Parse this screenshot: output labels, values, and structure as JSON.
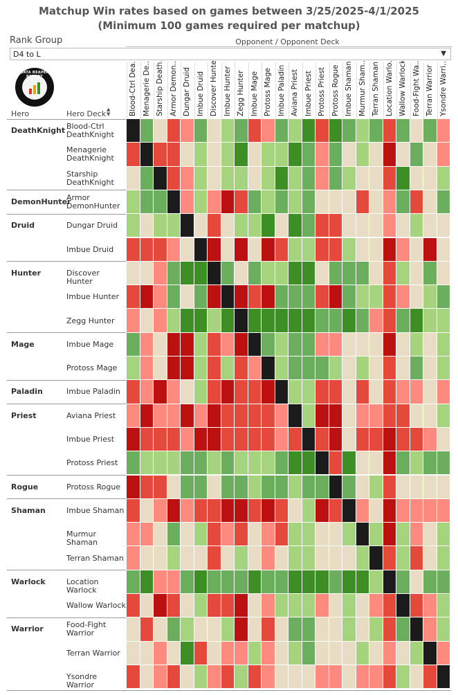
{
  "title": {
    "line1": "Matchup Win rates based on games between 3/25/2025-4/1/2025",
    "line2": "(Minimum 100 games required per matchup)"
  },
  "filters": {
    "rank_group_label": "Rank Group",
    "rank_group_value": "D4 to L",
    "opponent_header": "Opponent / Opponent Deck"
  },
  "logo": {
    "text": "DATA REAPER REPORT"
  },
  "columns": {
    "hero": "Hero",
    "hero_deck": "Hero Deck"
  },
  "colors": {
    "5": "#1b1b1b",
    "0": "#e8dcc4",
    "1": "#a6d47e",
    "2": "#6aae5e",
    "3": "#3d8e25",
    "-1": "#fc8a7e",
    "-2": "#e5493b",
    "-3": "#bb1110"
  },
  "chart_data": {
    "type": "heatmap",
    "title": "Matchup Win rates based on games between 3/25/2025-4/1/2025",
    "subtitle": "(Minimum 100 games required per matchup)",
    "x_label": "Opponent / Opponent Deck",
    "y_labels": [
      "Hero",
      "Hero Deck"
    ],
    "value_scale": "ordinal: -3 strongly unfavored .. 0 even .. 3 strongly favored; 5 = mirror (black)",
    "columns": [
      "Blood-Ctrl Dea...",
      "Menagerie De...",
      "Starship Death...",
      "Armor Demon...",
      "Dungar Druid",
      "Imbue Druid",
      "Discover Hunter",
      "Imbue Hunter",
      "Zegg Hunter",
      "Imbue Mage",
      "Protoss Mage",
      "Imbue Paladin",
      "Aviana Priest",
      "Imbue Priest",
      "Protoss Priest",
      "Protoss Rogue",
      "Imbue Shaman",
      "Murmur Sham...",
      "Terran Shaman",
      "Location Warlo...",
      "Wallow Warlock",
      "Food-Fight Wa...",
      "Terran Warrior",
      "Ysondre Warri..."
    ],
    "rows": [
      {
        "hero": "DeathKnight",
        "deck": "Blood-Ctrl DeathKnight",
        "values": [
          5,
          2,
          0,
          -2,
          -1,
          2,
          0,
          1,
          2,
          -2,
          -1,
          2,
          1,
          3,
          -2,
          3,
          2,
          1,
          2,
          -2,
          2,
          0,
          2,
          -1
        ]
      },
      {
        "hero": "DeathKnight",
        "deck": "Menagerie DeathKnight",
        "values": [
          -2,
          5,
          -2,
          -2,
          0,
          1,
          0,
          1,
          3,
          0,
          1,
          1,
          3,
          2,
          -1,
          2,
          0,
          1,
          0,
          -3,
          0,
          2,
          0,
          -1
        ]
      },
      {
        "hero": "DeathKnight",
        "deck": "Starship DeathKnight",
        "values": [
          0,
          2,
          5,
          -2,
          -1,
          1,
          0,
          1,
          1,
          0,
          1,
          3,
          1,
          2,
          -1,
          2,
          1,
          0,
          0,
          -2,
          3,
          0,
          0,
          1
        ]
      },
      {
        "hero": "DemonHunter",
        "deck": "Armor DemonHunter",
        "values": [
          1,
          2,
          2,
          5,
          -1,
          1,
          -1,
          -3,
          -2,
          2,
          1,
          2,
          1,
          2,
          0,
          0,
          0,
          -2,
          0,
          -1,
          2,
          -2,
          0,
          2
        ]
      },
      {
        "hero": "Druid",
        "deck": "Dungar Druid",
        "values": [
          1,
          0,
          1,
          1,
          5,
          0,
          -2,
          0,
          1,
          1,
          3,
          0,
          3,
          2,
          -2,
          -2,
          0,
          0,
          0,
          -1,
          0,
          1,
          0,
          0
        ]
      },
      {
        "hero": "Druid",
        "deck": "Imbue Druid",
        "values": [
          -2,
          -2,
          -2,
          -1,
          0,
          5,
          -3,
          0,
          -3,
          0,
          -3,
          -2,
          1,
          1,
          -2,
          -2,
          1,
          0,
          0,
          -3,
          -1,
          0,
          -3,
          0
        ]
      },
      {
        "hero": "Hunter",
        "deck": "Discover Hunter",
        "values": [
          0,
          0,
          -1,
          2,
          3,
          3,
          5,
          2,
          0,
          2,
          1,
          1,
          3,
          3,
          0,
          2,
          2,
          2,
          0,
          -2,
          1,
          0,
          2,
          0
        ]
      },
      {
        "hero": "Hunter",
        "deck": "Imbue Hunter",
        "values": [
          -2,
          -3,
          -1,
          2,
          0,
          2,
          -3,
          5,
          -3,
          -2,
          -3,
          2,
          2,
          2,
          -2,
          -3,
          2,
          1,
          1,
          -2,
          -1,
          0,
          1,
          2
        ]
      },
      {
        "hero": "Hunter",
        "deck": "Zegg Hunter",
        "values": [
          -1,
          0,
          -1,
          1,
          3,
          3,
          1,
          3,
          5,
          3,
          3,
          3,
          3,
          3,
          2,
          2,
          3,
          2,
          -1,
          -2,
          2,
          3,
          1,
          1
        ]
      },
      {
        "hero": "Mage",
        "deck": "Imbue Mage",
        "values": [
          2,
          -1,
          0,
          -3,
          -3,
          1,
          -2,
          -1,
          -3,
          5,
          2,
          1,
          2,
          2,
          -1,
          -1,
          0,
          0,
          0,
          -3,
          0,
          1,
          0,
          1
        ]
      },
      {
        "hero": "Mage",
        "deck": "Protoss Mage",
        "values": [
          1,
          -1,
          0,
          -3,
          -3,
          1,
          -2,
          1,
          -2,
          -1,
          5,
          1,
          2,
          2,
          2,
          1,
          0,
          1,
          0,
          -2,
          0,
          2,
          0,
          1
        ]
      },
      {
        "hero": "Paladin",
        "deck": "Imbue Paladin",
        "values": [
          -2,
          -1,
          -3,
          -1,
          0,
          1,
          -2,
          -3,
          -2,
          -2,
          -3,
          5,
          1,
          1,
          -2,
          -2,
          0,
          -2,
          0,
          -2,
          -1,
          -1,
          0,
          -1
        ]
      },
      {
        "hero": "Priest",
        "deck": "Aviana Priest",
        "values": [
          -1,
          -3,
          -1,
          -1,
          -3,
          -1,
          -3,
          -2,
          -2,
          -2,
          -2,
          -1,
          5,
          1,
          -3,
          -3,
          0,
          -1,
          -1,
          -2,
          -2,
          0,
          0,
          1
        ]
      },
      {
        "hero": "Priest",
        "deck": "Imbue Priest",
        "values": [
          -3,
          -2,
          -2,
          -2,
          -1,
          -3,
          -3,
          -2,
          -2,
          -2,
          -2,
          -1,
          -2,
          5,
          -2,
          -3,
          0,
          -2,
          -2,
          -3,
          -2,
          -2,
          -1,
          0
        ]
      },
      {
        "hero": "Priest",
        "deck": "Protoss Priest",
        "values": [
          2,
          1,
          1,
          1,
          2,
          2,
          1,
          2,
          1,
          1,
          1,
          2,
          3,
          3,
          5,
          -2,
          3,
          0,
          0,
          -3,
          2,
          1,
          2,
          2
        ]
      },
      {
        "hero": "Rogue",
        "deck": "Protoss Rogue",
        "values": [
          -3,
          -2,
          -2,
          0,
          2,
          2,
          0,
          2,
          2,
          1,
          2,
          2,
          1,
          2,
          2,
          5,
          2,
          0,
          1,
          -2,
          0,
          0,
          0,
          0
        ]
      },
      {
        "hero": "Shaman",
        "deck": "Imbue Shaman",
        "values": [
          -2,
          0,
          -1,
          -3,
          -1,
          -2,
          -2,
          -3,
          -3,
          -2,
          -3,
          -2,
          0,
          1,
          -3,
          -2,
          5,
          -1,
          0,
          -3,
          -1,
          -1,
          -1,
          -1
        ]
      },
      {
        "hero": "Shaman",
        "deck": "Murmur Shaman",
        "values": [
          -1,
          -1,
          0,
          2,
          0,
          1,
          -2,
          -1,
          -2,
          0,
          -1,
          -2,
          1,
          1,
          0,
          0,
          1,
          5,
          1,
          -3,
          1,
          -1,
          0,
          1
        ]
      },
      {
        "hero": "Shaman",
        "deck": "Terran Shaman",
        "values": [
          -1,
          0,
          0,
          1,
          0,
          0,
          -2,
          0,
          1,
          0,
          -1,
          0,
          1,
          1,
          0,
          0,
          0,
          1,
          5,
          -2,
          1,
          -2,
          0,
          1
        ]
      },
      {
        "hero": "Warlock",
        "deck": "Location Warlock",
        "values": [
          2,
          3,
          -1,
          -1,
          2,
          3,
          2,
          2,
          2,
          3,
          2,
          2,
          3,
          3,
          3,
          2,
          3,
          3,
          1,
          5,
          2,
          0,
          2,
          2
        ]
      },
      {
        "hero": "Warlock",
        "deck": "Wallow Warlock",
        "values": [
          -2,
          0,
          -3,
          -2,
          0,
          1,
          -2,
          -2,
          -3,
          0,
          -1,
          1,
          1,
          1,
          -1,
          0,
          1,
          0,
          -1,
          -2,
          5,
          -2,
          -1,
          1
        ]
      },
      {
        "hero": "Warrior",
        "deck": "Food-Fight Warrior",
        "values": [
          0,
          -2,
          0,
          2,
          1,
          0,
          0,
          1,
          -3,
          0,
          -2,
          0,
          2,
          2,
          0,
          0,
          1,
          0,
          1,
          -2,
          2,
          5,
          -1,
          1
        ]
      },
      {
        "hero": "Warrior",
        "deck": "Terran Warrior",
        "values": [
          0,
          0,
          -1,
          0,
          3,
          -2,
          0,
          -1,
          -1,
          1,
          -1,
          0,
          1,
          2,
          0,
          0,
          0,
          1,
          0,
          -1,
          0,
          1,
          5,
          -1
        ]
      },
      {
        "hero": "Warrior",
        "deck": "Ysondre Warrior",
        "values": [
          -2,
          0,
          -1,
          -2,
          0,
          1,
          -1,
          -2,
          1,
          -2,
          -1,
          0,
          0,
          0,
          -1,
          -1,
          0,
          -1,
          -1,
          -2,
          1,
          0,
          -2,
          5
        ]
      }
    ]
  }
}
